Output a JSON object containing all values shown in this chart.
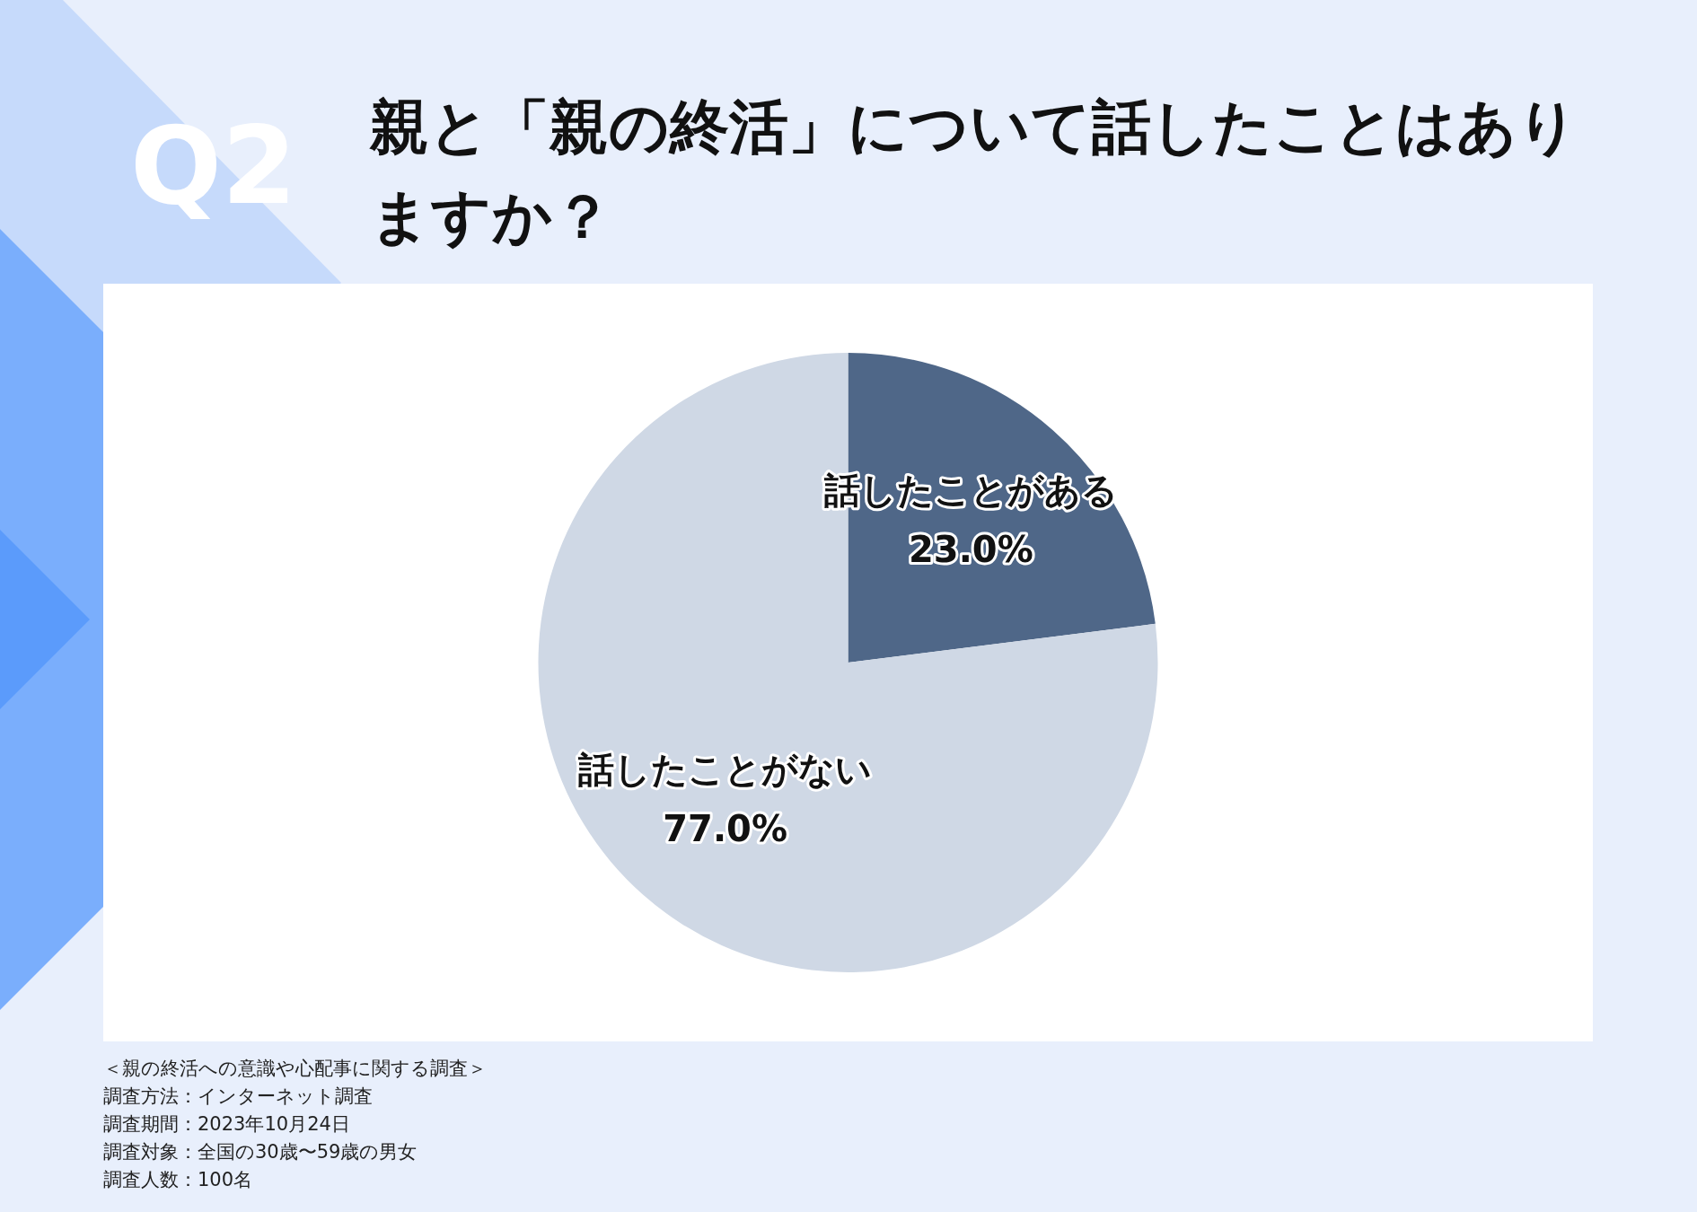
{
  "chart_data": {
    "type": "pie",
    "title": "親と「親の終活」について話したことはありますか？",
    "subtitle": "Q2",
    "categories": [
      "話したことがある",
      "話したことがない"
    ],
    "values": [
      23.0,
      77.0
    ],
    "value_labels": [
      "23.0%",
      "77.0%"
    ],
    "colors": [
      "#4f6788",
      "#cfd8e5"
    ],
    "legend": false,
    "annotations": [
      "＜親の終活への意識や心配事に関する調査＞",
      "調査方法：インターネット調査",
      "調査期間：2023年10月24日",
      "調査対象：全国の30歳〜59歳の男女",
      "調査人数：100名"
    ]
  }
}
